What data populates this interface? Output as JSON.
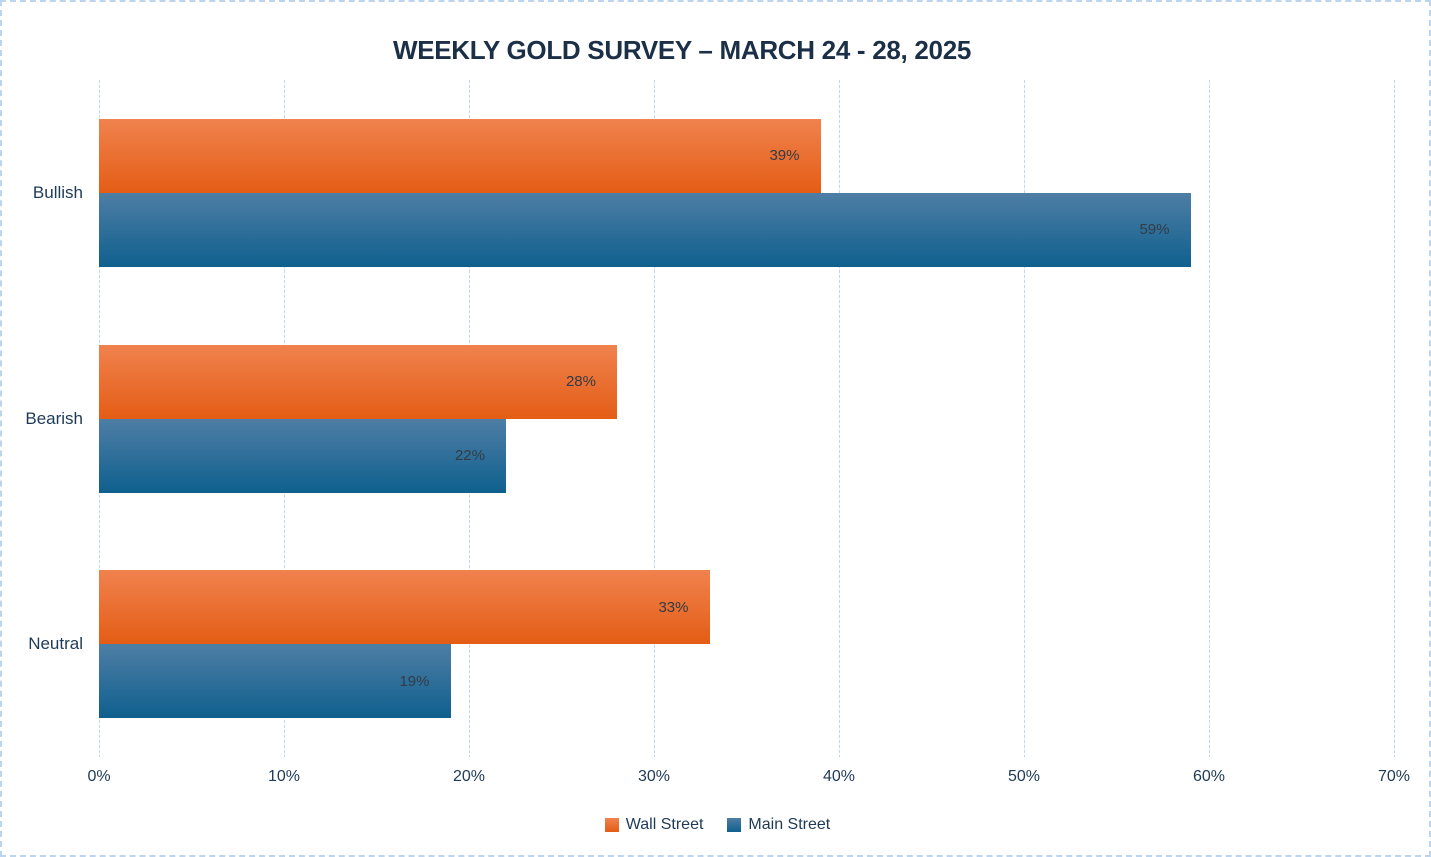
{
  "title": "WEEKLY GOLD SURVEY – MARCH 24 - 28, 2025",
  "chart_data": {
    "type": "bar",
    "orientation": "horizontal",
    "title": "WEEKLY GOLD SURVEY – MARCH 24 - 28, 2025",
    "categories": [
      "Bullish",
      "Bearish",
      "Neutral"
    ],
    "series": [
      {
        "name": "Wall Street",
        "values": [
          39,
          28,
          33
        ],
        "color_top": "#F0824E",
        "color_bottom": "#E45D15"
      },
      {
        "name": "Main Street",
        "values": [
          59,
          22,
          19
        ],
        "color_top": "#4E7EA5",
        "color_bottom": "#0F608E"
      }
    ],
    "value_suffix": "%",
    "xlim": [
      0,
      70
    ],
    "x_tick_labels": [
      "0%",
      "10%",
      "20%",
      "30%",
      "40%",
      "50%",
      "60%",
      "70%"
    ],
    "grid": true,
    "legend_position": "bottom"
  },
  "colors": {
    "background": "#FFFFFF",
    "page_border": "#BCD4EE",
    "gridline": "#C6DAEE",
    "title_text": "#1B2F47",
    "axis_text": "#1E3A57",
    "value_text": "#333B45",
    "wall_street": "#E8632B",
    "main_street": "#1F608C"
  }
}
